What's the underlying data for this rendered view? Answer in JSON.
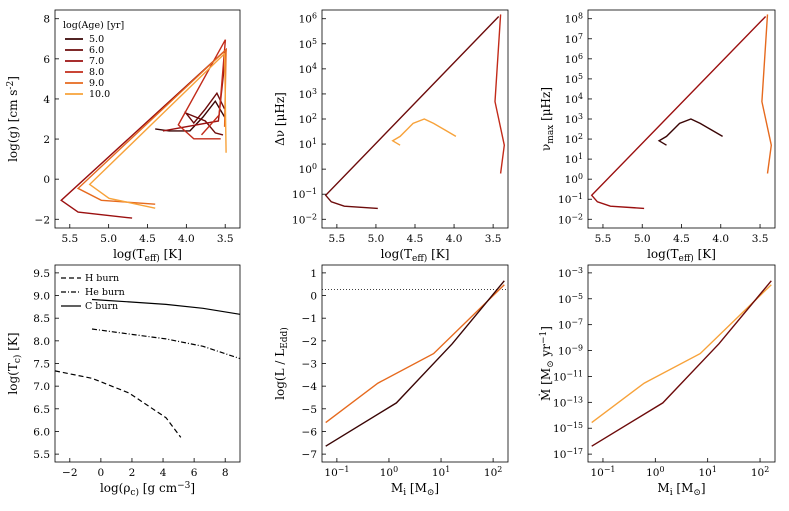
{
  "chart_data": [
    {
      "type": "line",
      "xlabel": "log(T_eff) [K]",
      "ylabel": "log(g) [cm s^-2]",
      "x_reversed": true,
      "y_reversed": true,
      "xlim": [
        5.7,
        3.3
      ],
      "ylim": [
        -2,
        9
      ],
      "xticks": [
        "5.5",
        "5.0",
        "4.5",
        "4.0",
        "3.5"
      ],
      "yticks": [
        "−2",
        "0",
        "2",
        "4",
        "6",
        "8"
      ],
      "legend_title": "log(Age) [yr]",
      "legend_position": "upper-left",
      "series": [
        {
          "name": "5.0",
          "color": "#3a0505",
          "points": [
            [
              3.5,
              3.4
            ],
            [
              3.62,
              2.6
            ],
            [
              3.78,
              3.4
            ],
            [
              3.95,
              4.1
            ],
            [
              4.22,
              4.1
            ],
            [
              4.4,
              4.0
            ]
          ]
        },
        {
          "name": "6.0",
          "color": "#6d0b0b",
          "points": [
            [
              3.5,
              3.0
            ],
            [
              3.6,
              2.2
            ],
            [
              3.75,
              3.0
            ],
            [
              3.9,
              3.7
            ],
            [
              4.0,
              3.2
            ],
            [
              3.75,
              3.6
            ],
            [
              3.62,
              4.2
            ],
            [
              3.52,
              4.3
            ]
          ]
        },
        {
          "name": "7.0",
          "color": "#9b1010",
          "points": [
            [
              4.3,
              4.1
            ],
            [
              3.58,
              3.6
            ],
            [
              3.48,
              0.0
            ],
            [
              5.62,
              7.6
            ],
            [
              5.4,
              8.2
            ],
            [
              4.7,
              8.5
            ]
          ]
        },
        {
          "name": "8.0",
          "color": "#c22b1a",
          "points": [
            [
              3.8,
              4.3
            ],
            [
              3.57,
              3.3
            ],
            [
              3.49,
              -0.5
            ],
            [
              4.1,
              3.8
            ],
            [
              3.9,
              4.5
            ],
            [
              3.55,
              4.5
            ]
          ]
        },
        {
          "name": "9.0",
          "color": "#e66a1e",
          "points": [
            [
              3.5,
              3.9
            ],
            [
              3.48,
              0.0
            ],
            [
              5.4,
              7.0
            ],
            [
              5.1,
              7.6
            ],
            [
              4.4,
              7.8
            ]
          ]
        },
        {
          "name": "10.0",
          "color": "#f7a23a",
          "points": [
            [
              3.48,
              5.2
            ],
            [
              3.5,
              0.2
            ],
            [
              5.25,
              6.8
            ],
            [
              5.0,
              7.5
            ],
            [
              4.4,
              8.0
            ]
          ]
        }
      ]
    },
    {
      "type": "line",
      "xlabel": "log(T_eff) [K]",
      "ylabel": "Δν [μHz]",
      "x_reversed": true,
      "y_scale": "log",
      "xlim": [
        5.7,
        3.3
      ],
      "xticks": [
        "5.5",
        "5.0",
        "4.5",
        "4.0",
        "3.5"
      ],
      "yticks": [
        "10^−2",
        "10^−1",
        "10^0",
        "10^1",
        "10^2",
        "10^3",
        "10^4",
        "10^5",
        "10^6"
      ]
    },
    {
      "type": "line",
      "xlabel": "log(T_eff) [K]",
      "ylabel": "ν_max [μHz]",
      "x_reversed": true,
      "y_scale": "log",
      "xlim": [
        5.7,
        3.3
      ],
      "xticks": [
        "5.5",
        "5.0",
        "4.5",
        "4.0",
        "3.5"
      ],
      "yticks": [
        "10^−2",
        "10^−1",
        "10^0",
        "10^1",
        "10^2",
        "10^3",
        "10^4",
        "10^5",
        "10^6",
        "10^7",
        "10^8"
      ]
    },
    {
      "type": "line",
      "xlabel": "log(ρ_c) [g cm^−3]",
      "ylabel": "log(T_c) [K]",
      "xlim": [
        -2,
        8
      ],
      "ylim": [
        5.5,
        9.5
      ],
      "xticks": [
        "−2",
        "0",
        "2",
        "4",
        "6",
        "8"
      ],
      "yticks": [
        "5.5",
        "6.0",
        "6.5",
        "7.0",
        "7.5",
        "8.0",
        "8.5",
        "9.0",
        "9.5"
      ],
      "legend_position": "upper-left",
      "reference_lines": [
        {
          "name": "H burn",
          "style": "dashed",
          "points": [
            [
              -2,
              7.35
            ],
            [
              0,
              7.2
            ],
            [
              2,
              6.9
            ],
            [
              4,
              6.4
            ],
            [
              4.8,
              6.0
            ]
          ]
        },
        {
          "name": "He burn",
          "style": "dash-dot",
          "points": [
            [
              0,
              8.2
            ],
            [
              2,
              8.1
            ],
            [
              4,
              8.0
            ],
            [
              6,
              7.85
            ],
            [
              8,
              7.6
            ]
          ]
        },
        {
          "name": "C burn",
          "style": "solid",
          "points": [
            [
              0,
              8.8
            ],
            [
              2,
              8.75
            ],
            [
              4,
              8.7
            ],
            [
              6,
              8.62
            ],
            [
              8,
              8.5
            ]
          ]
        }
      ]
    },
    {
      "type": "line",
      "xlabel": "M_i [M_⊙]",
      "ylabel": "log(L / L_Edd)",
      "x_scale": "log",
      "xlim": [
        0.07,
        160
      ],
      "ylim": [
        -7,
        1
      ],
      "xticks": [
        "10^−1",
        "10^0",
        "10^1",
        "10^2"
      ],
      "yticks": [
        "−7",
        "−6",
        "−5",
        "−4",
        "−3",
        "−2",
        "−1",
        "0",
        "1"
      ],
      "reference_line_y": 0
    },
    {
      "type": "line",
      "xlabel": "M_i [M_⊙]",
      "ylabel": "Ṁ [M_⊙ yr^−1]",
      "x_scale": "log",
      "y_scale": "log",
      "xlim": [
        0.07,
        160
      ],
      "xticks": [
        "10^−1",
        "10^0",
        "10^1",
        "10^2"
      ],
      "yticks": [
        "10^−17",
        "10^−15",
        "10^−13",
        "10^−11",
        "10^−9",
        "10^−7",
        "10^−5",
        "10^−3"
      ]
    }
  ]
}
